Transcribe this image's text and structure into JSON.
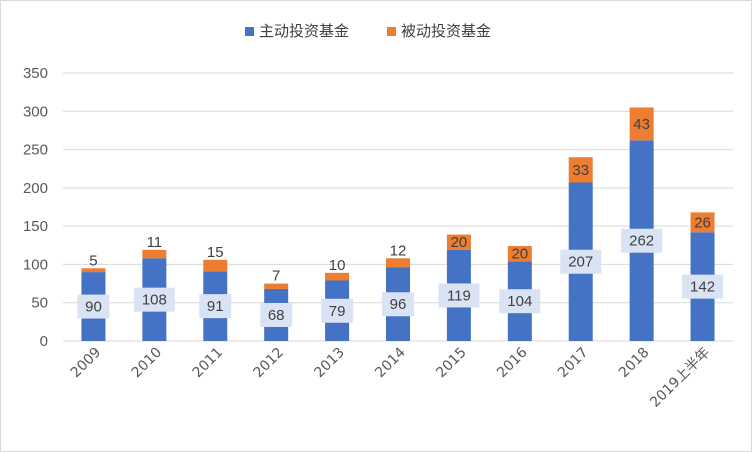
{
  "chart_data": {
    "type": "bar",
    "stacked": true,
    "categories": [
      "2009",
      "2010",
      "2011",
      "2012",
      "2013",
      "2014",
      "2015",
      "2016",
      "2017",
      "2018",
      "2019上半年"
    ],
    "series": [
      {
        "name": "主动投资基金",
        "color": "#4472C4",
        "values": [
          90,
          108,
          91,
          68,
          79,
          96,
          119,
          104,
          207,
          262,
          142
        ]
      },
      {
        "name": "被动投资基金",
        "color": "#ED7D31",
        "values": [
          5,
          11,
          15,
          7,
          10,
          12,
          20,
          20,
          33,
          43,
          26
        ]
      }
    ],
    "yticks": [
      0,
      50,
      100,
      150,
      200,
      250,
      300,
      350
    ],
    "ylim": [
      0,
      350
    ],
    "grid": true,
    "legend_position": "top-center",
    "title": "",
    "xlabel": "",
    "ylabel": ""
  }
}
